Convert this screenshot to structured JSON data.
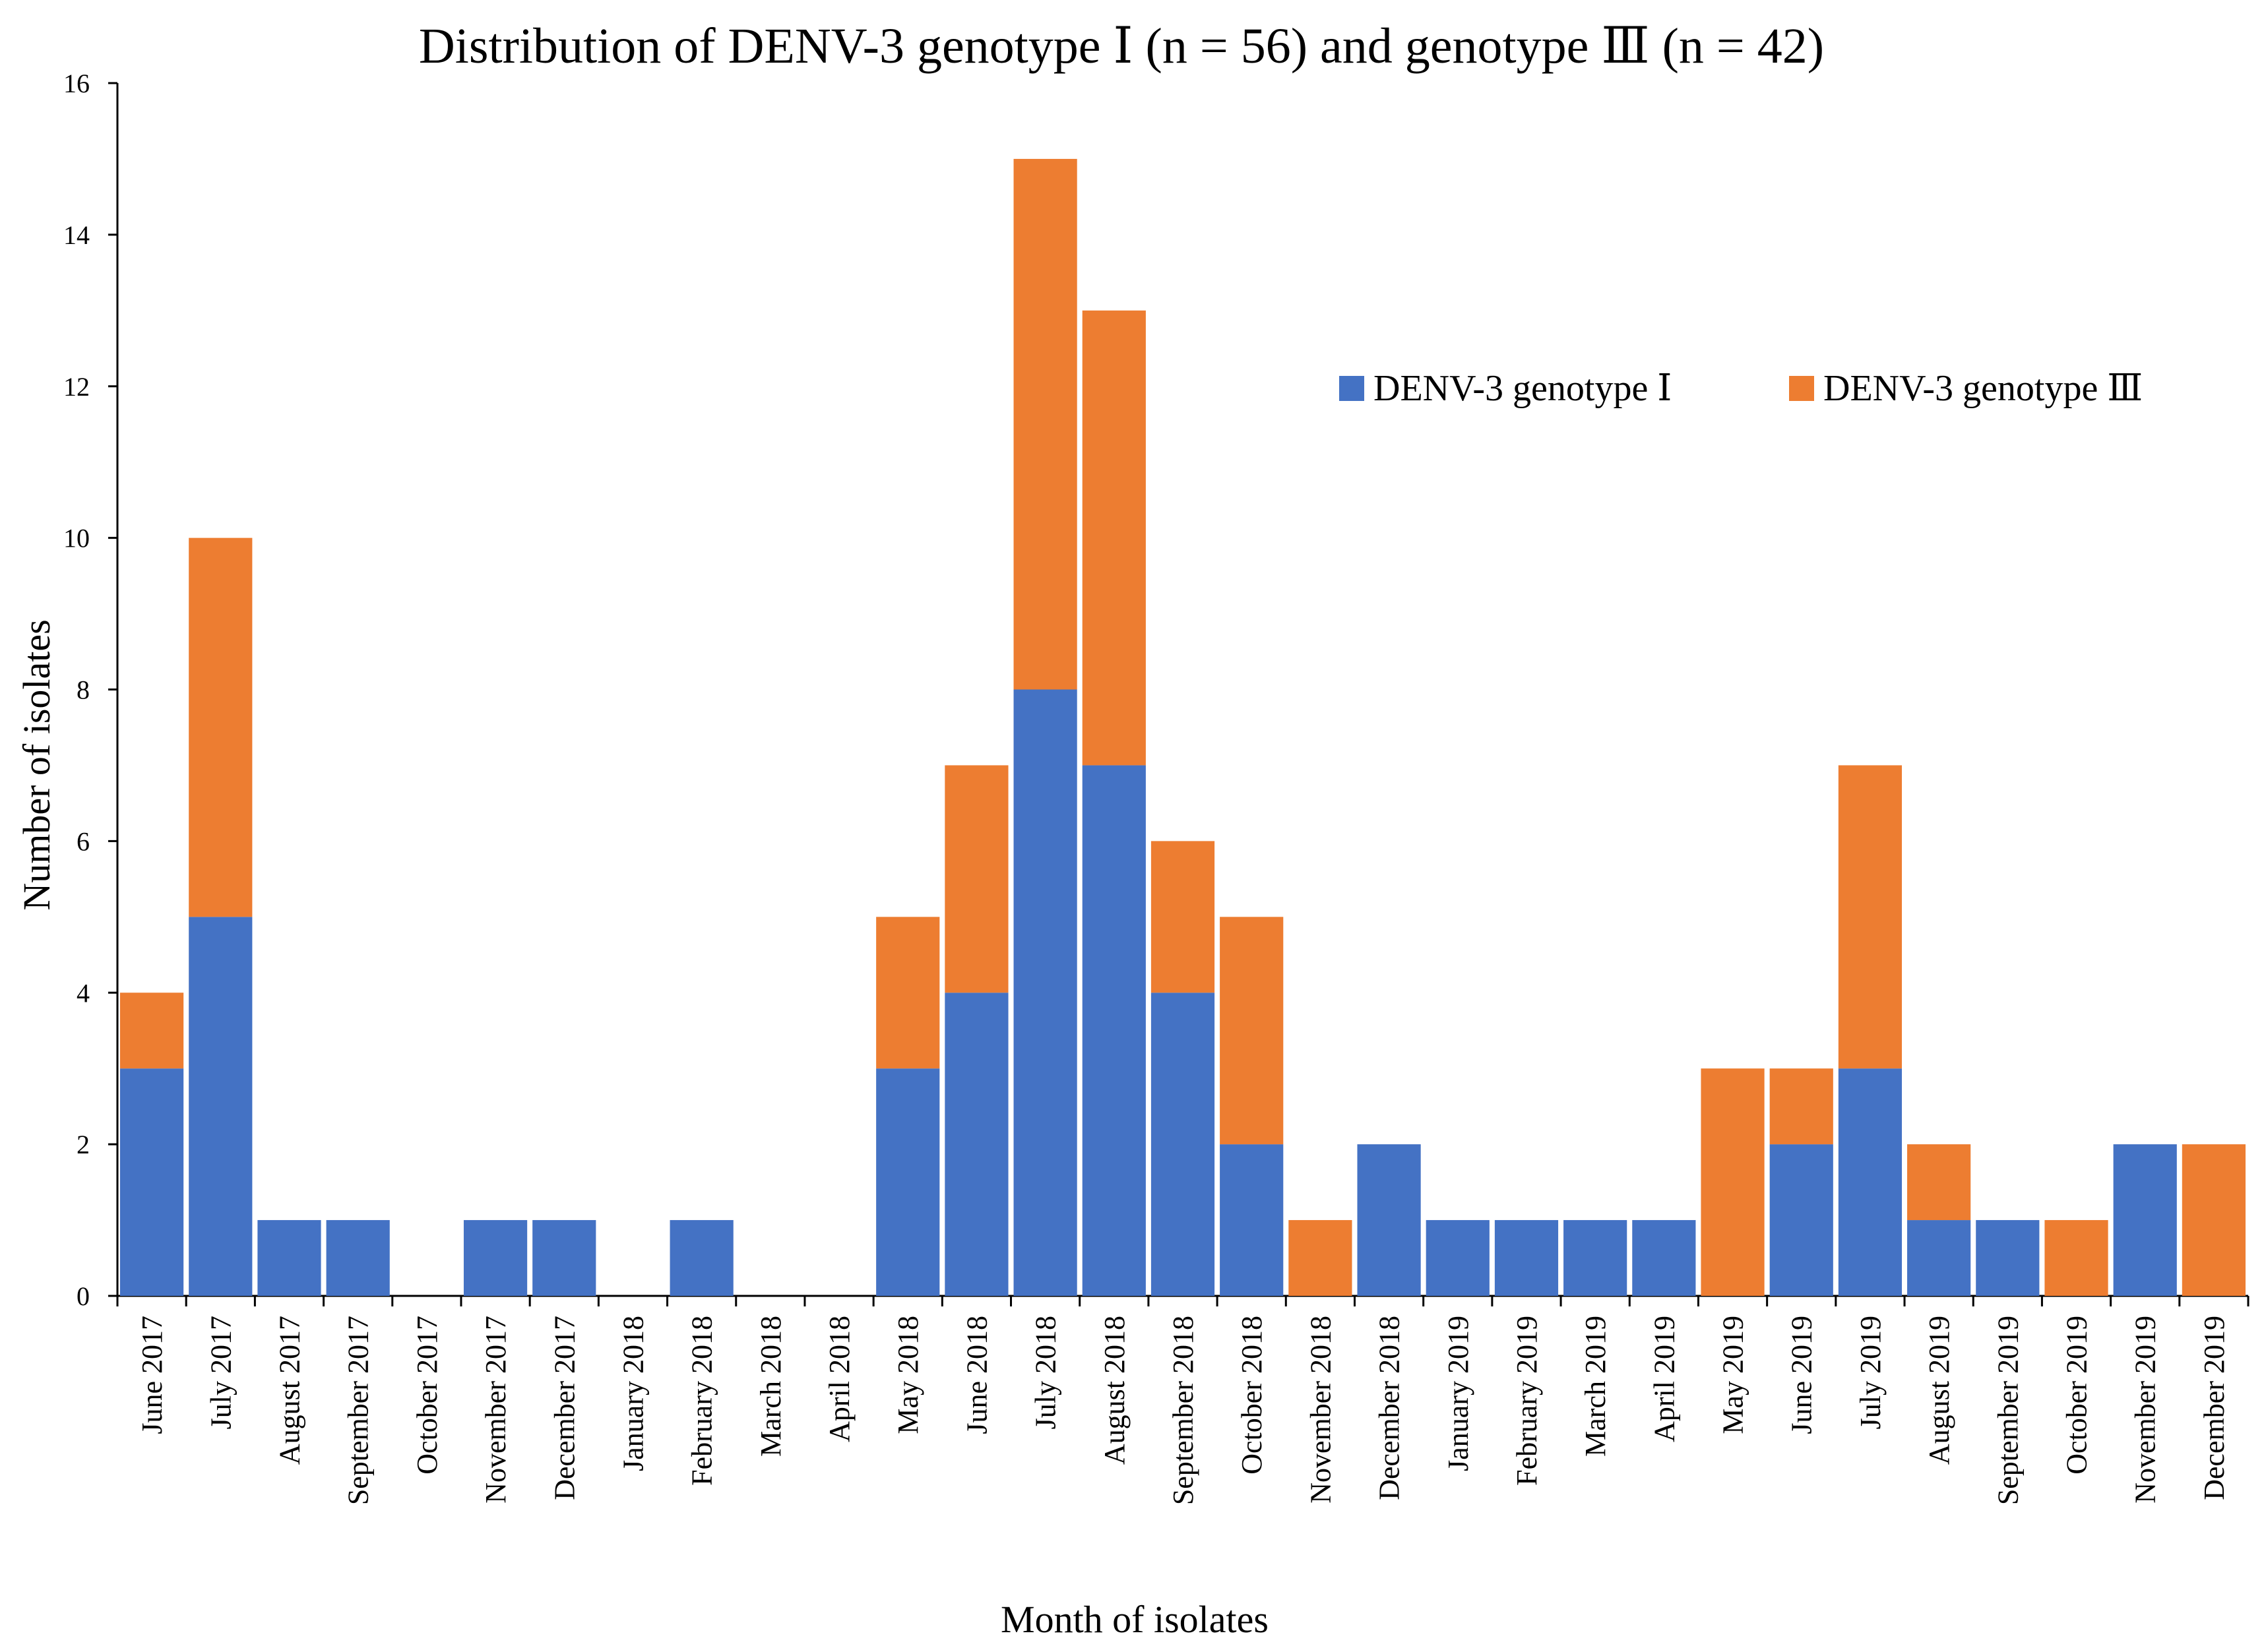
{
  "colors": {
    "genotype_I": "#4472C4",
    "genotype_III": "#ED7D31"
  },
  "chart_data": {
    "type": "bar",
    "stacked": true,
    "title": "Distribution of DENV-3 genotype Ⅰ (n = 56) and genotype Ⅲ (n = 42)",
    "xlabel": "Month of isolates",
    "ylabel": "Number of isolates",
    "ylim": [
      0,
      16
    ],
    "yticks": [
      0,
      2,
      4,
      6,
      8,
      10,
      12,
      14,
      16
    ],
    "legend_position": "top-right",
    "categories": [
      "June 2017",
      "July 2017",
      "August 2017",
      "September 2017",
      "October 2017",
      "November 2017",
      "December 2017",
      "January 2018",
      "February 2018",
      "March 2018",
      "April 2018",
      "May 2018",
      "June 2018",
      "July 2018",
      "August 2018",
      "September 2018",
      "October 2018",
      "November 2018",
      "December 2018",
      "January 2019",
      "February 2019",
      "March 2019",
      "April 2019",
      "May 2019",
      "June 2019",
      "July 2019",
      "August 2019",
      "September 2019",
      "October 2019",
      "November 2019",
      "December 2019"
    ],
    "series": [
      {
        "name": "DENV-3 genotype Ⅰ",
        "color_key": "genotype_I",
        "values": [
          3,
          5,
          1,
          1,
          0,
          1,
          1,
          0,
          1,
          0,
          0,
          3,
          4,
          8,
          7,
          4,
          2,
          0,
          2,
          1,
          1,
          1,
          1,
          0,
          2,
          3,
          1,
          1,
          0,
          2,
          0
        ]
      },
      {
        "name": "DENV-3 genotype Ⅲ",
        "color_key": "genotype_III",
        "values": [
          1,
          5,
          0,
          0,
          0,
          0,
          0,
          0,
          0,
          0,
          0,
          2,
          3,
          7,
          6,
          2,
          3,
          1,
          0,
          0,
          0,
          0,
          0,
          3,
          1,
          4,
          1,
          0,
          1,
          0,
          2
        ]
      }
    ]
  }
}
